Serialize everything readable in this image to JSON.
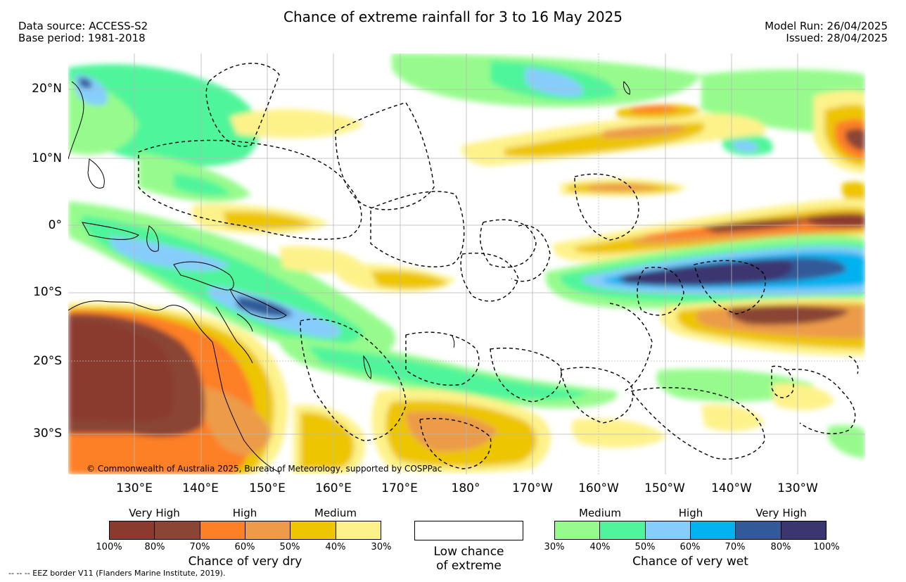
{
  "title": "Chance of extreme rainfall for 3 to 16 May 2025",
  "data_source": "Data source: ACCESS-S2",
  "base_period": "Base period: 1981-2018",
  "model_run": "Model Run: 26/04/2025",
  "issued": "Issued: 28/04/2025",
  "lat_labels": [
    "20°N",
    "10°N",
    "0°",
    "10°S",
    "20°S",
    "30°S"
  ],
  "lon_labels": [
    "130°E",
    "140°E",
    "150°E",
    "160°E",
    "170°E",
    "180°",
    "170°W",
    "160°W",
    "150°W",
    "140°W",
    "130°W"
  ],
  "copyright": "© Commonwealth of Australia 2025, Bureau of Meteorology, supported by COSPPac",
  "legend": {
    "dry": {
      "categories": [
        "Very High",
        "High",
        "Medium"
      ],
      "ticks": [
        "100%",
        "80%",
        "70%",
        "60%",
        "50%",
        "40%",
        "30%"
      ],
      "colors": [
        "#8b3a2e",
        "#8a4535",
        "#fd7f26",
        "#ec9b48",
        "#edc500",
        "#fdf28a"
      ],
      "caption": "Chance of very dry"
    },
    "low": {
      "line1": "Low chance",
      "line2": "of extreme"
    },
    "wet": {
      "categories": [
        "Medium",
        "High",
        "Very High"
      ],
      "ticks": [
        "30%",
        "40%",
        "50%",
        "60%",
        "70%",
        "80%",
        "100%"
      ],
      "colors": [
        "#96fb8c",
        "#4ff59a",
        "#86cdfb",
        "#00b2ef",
        "#325a99",
        "#3b3670"
      ],
      "caption": "Chance of very wet"
    }
  },
  "eez_note": "-- -- -- EEZ border V11 (Flanders Marine Institute, 2019)."
}
